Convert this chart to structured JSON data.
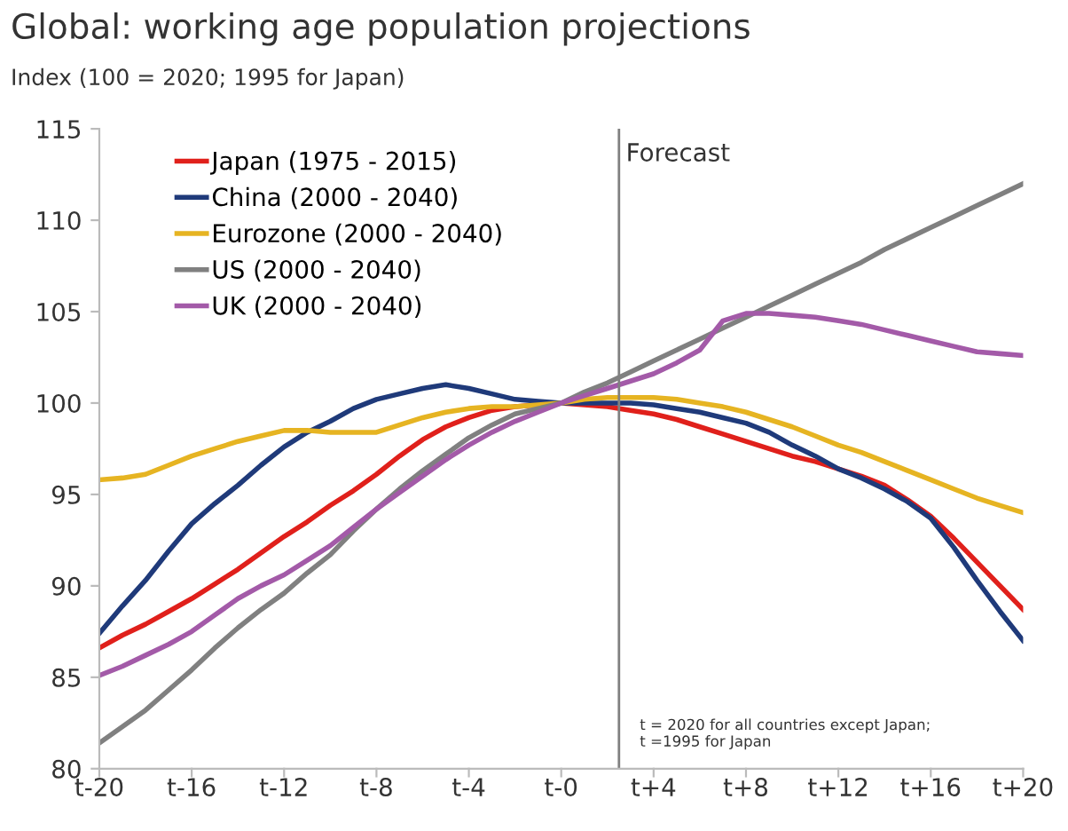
{
  "chart_data": {
    "type": "line",
    "title": "Global: working age population projections",
    "ylabel": "Index (100 = 2020; 1995 for Japan)",
    "categories": [
      "t-20",
      null,
      null,
      null,
      "t-16",
      null,
      null,
      null,
      "t-12",
      null,
      null,
      null,
      "t-8",
      null,
      null,
      null,
      "t-4",
      null,
      null,
      null,
      "t-0",
      null,
      null,
      null,
      "t+4",
      null,
      null,
      null,
      "t+8",
      null,
      null,
      null,
      "t+12",
      null,
      null,
      null,
      "t+16",
      null,
      null,
      null,
      "t+20"
    ],
    "ylim": [
      80,
      115
    ],
    "yticks": [
      80,
      85,
      90,
      95,
      100,
      105,
      110,
      115
    ],
    "grid": false,
    "legend": "top left",
    "line_style": "solid",
    "marker": "none",
    "series": [
      {
        "name": "Japan (1975 - 2015)",
        "color": "#e0201b",
        "values": [
          86.6,
          87.3,
          87.9,
          88.6,
          89.3,
          90.1,
          90.9,
          91.8,
          92.7,
          93.5,
          94.4,
          95.2,
          96.1,
          97.1,
          98.0,
          98.7,
          99.2,
          99.6,
          99.8,
          99.9,
          100,
          99.9,
          99.8,
          99.6,
          99.4,
          99.1,
          98.7,
          98.3,
          97.9,
          97.5,
          97.1,
          96.8,
          96.4,
          96.0,
          95.5,
          94.7,
          93.8,
          92.6,
          91.3,
          90.0,
          88.7
        ]
      },
      {
        "name": "China (2000 - 2040)",
        "color": "#1f3a7a",
        "values": [
          87.4,
          88.9,
          90.3,
          91.9,
          93.4,
          94.5,
          95.5,
          96.6,
          97.6,
          98.4,
          99.0,
          99.7,
          100.2,
          100.5,
          100.8,
          101.0,
          100.8,
          100.5,
          100.2,
          100.1,
          100,
          100,
          100,
          100,
          99.9,
          99.7,
          99.5,
          99.2,
          98.9,
          98.4,
          97.7,
          97.1,
          96.4,
          95.9,
          95.3,
          94.6,
          93.7,
          92.1,
          90.3,
          88.6,
          87.0
        ]
      },
      {
        "name": "Eurozone (2000 - 2040)",
        "color": "#e6b422",
        "values": [
          95.8,
          95.9,
          96.1,
          96.6,
          97.1,
          97.5,
          97.9,
          98.2,
          98.5,
          98.5,
          98.4,
          98.4,
          98.4,
          98.8,
          99.2,
          99.5,
          99.7,
          99.8,
          99.8,
          99.9,
          100,
          100.2,
          100.3,
          100.3,
          100.3,
          100.2,
          100,
          99.8,
          99.5,
          99.1,
          98.7,
          98.2,
          97.7,
          97.3,
          96.8,
          96.3,
          95.8,
          95.3,
          94.8,
          94.4,
          94.0
        ]
      },
      {
        "name": "US (2000 - 2040)",
        "color": "#808080",
        "values": [
          81.4,
          82.3,
          83.2,
          84.3,
          85.4,
          86.6,
          87.7,
          88.7,
          89.6,
          90.7,
          91.7,
          93.0,
          94.2,
          95.3,
          96.3,
          97.2,
          98.1,
          98.8,
          99.4,
          99.7,
          100,
          100.6,
          101.1,
          101.7,
          102.3,
          102.9,
          103.5,
          104.1,
          104.7,
          105.3,
          105.9,
          106.5,
          107.1,
          107.7,
          108.4,
          109.0,
          109.6,
          110.2,
          110.8,
          111.4,
          112.0
        ]
      },
      {
        "name": "UK (2000 - 2040)",
        "color": "#a35aa8",
        "values": [
          85.1,
          85.6,
          86.2,
          86.8,
          87.5,
          88.4,
          89.3,
          90.0,
          90.6,
          91.4,
          92.2,
          93.2,
          94.2,
          95.1,
          96.0,
          96.9,
          97.7,
          98.4,
          99.0,
          99.5,
          100,
          100.4,
          100.8,
          101.2,
          101.6,
          102.2,
          102.9,
          104.5,
          104.9,
          104.9,
          104.8,
          104.7,
          104.5,
          104.3,
          104.0,
          103.7,
          103.4,
          103.1,
          102.8,
          102.7,
          102.6
        ]
      }
    ],
    "annotations": [
      "Forecast",
      "t = 2020 for all countries except Japan;\nt =1995 for Japan"
    ]
  }
}
